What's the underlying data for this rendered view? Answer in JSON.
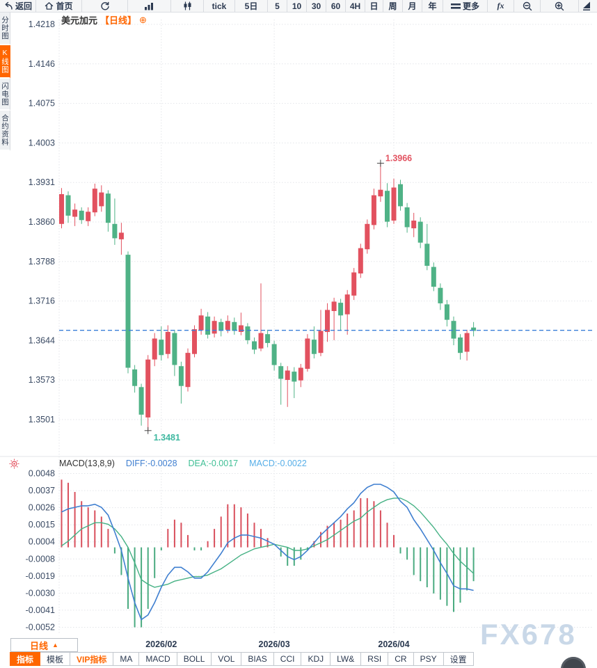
{
  "toolbar": {
    "items": [
      {
        "id": "back",
        "label": "返回",
        "icon": "back-icon"
      },
      {
        "id": "home",
        "label": "首页",
        "icon": "home-icon"
      },
      {
        "id": "refresh",
        "icon": "refresh-icon"
      },
      {
        "id": "bar-chart",
        "icon": "bar-chart-icon"
      },
      {
        "id": "candlestick",
        "icon": "candlestick-icon"
      },
      {
        "id": "tick",
        "label": "tick"
      },
      {
        "id": "5d",
        "label": "5日"
      },
      {
        "id": "m5",
        "label": "5"
      },
      {
        "id": "m10",
        "label": "10"
      },
      {
        "id": "m30",
        "label": "30"
      },
      {
        "id": "m60",
        "label": "60"
      },
      {
        "id": "h4",
        "label": "4H"
      },
      {
        "id": "day",
        "label": "日"
      },
      {
        "id": "week",
        "label": "周"
      },
      {
        "id": "month",
        "label": "月"
      },
      {
        "id": "year",
        "label": "年"
      },
      {
        "id": "more",
        "label": "更多",
        "icon": "menu-icon"
      },
      {
        "id": "fx",
        "label": "fx"
      },
      {
        "id": "zoom-out",
        "icon": "zoom-out-icon"
      },
      {
        "id": "zoom-in",
        "icon": "zoom-in-icon"
      },
      {
        "id": "draw",
        "icon": "draw-icon"
      }
    ]
  },
  "sidebar": {
    "items": [
      {
        "label": "分时图",
        "active": false
      },
      {
        "label": "K线图",
        "active": true
      },
      {
        "label": "闪电图",
        "active": false
      },
      {
        "label": "合约资料",
        "active": false
      }
    ]
  },
  "chart_header": {
    "title": "美元加元",
    "period": "【日线】",
    "add_icon": "⊕"
  },
  "macd_legend": {
    "name": "MACD(13,8,9)",
    "diff": "DIFF:-0.0028",
    "dea": "DEA:-0.0017",
    "macd": "MACD:-0.0022"
  },
  "annotations": {
    "high": "1.3966",
    "low": "1.3481"
  },
  "bottom_bar": {
    "period_label": "日线",
    "period_arrow": "▲",
    "tabs": [
      {
        "label": "指标",
        "state": "active"
      },
      {
        "label": "模板",
        "state": "normal"
      },
      {
        "label": "VIP指标",
        "state": "vip"
      },
      {
        "label": "MA",
        "state": "normal"
      },
      {
        "label": "MACD",
        "state": "normal"
      },
      {
        "label": "BOLL",
        "state": "normal"
      },
      {
        "label": "VOL",
        "state": "normal"
      },
      {
        "label": "BIAS",
        "state": "normal"
      },
      {
        "label": "CCI",
        "state": "normal"
      },
      {
        "label": "KDJ",
        "state": "normal"
      },
      {
        "label": "LW&",
        "state": "normal"
      },
      {
        "label": "RSI",
        "state": "normal"
      },
      {
        "label": "CR",
        "state": "normal"
      },
      {
        "label": "PSY",
        "state": "normal"
      },
      {
        "label": "设置",
        "state": "normal"
      }
    ]
  },
  "watermark": "FX678",
  "colors": {
    "up": "#e2515f",
    "down": "#4fb286",
    "hist_pos": "#d94f5c",
    "hist_neg": "#4aab80",
    "diff_line": "#3f7fd0",
    "dea_line": "#45b184",
    "dashed_line": "#3b7fd8",
    "accent": "#ff6600",
    "axis_text": "#3a4a63",
    "grid": "#e3e5e9",
    "high_text": "#e2515f",
    "low_text": "#3eb8a0"
  },
  "chart_data": {
    "type": "candlestick+macd",
    "symbol": "美元加元",
    "period": "日线",
    "price_axis_ticks": [
      "1.4218",
      "1.4146",
      "1.4075",
      "1.4003",
      "1.3931",
      "1.3860",
      "1.3788",
      "1.3716",
      "1.3644",
      "1.3573",
      "1.3501"
    ],
    "macd_axis_ticks": [
      "0.0048",
      "0.0037",
      "0.0026",
      "0.0015",
      "0.0004",
      "-0.0008",
      "-0.0019",
      "-0.0030",
      "-0.0041",
      "-0.0052"
    ],
    "x_labels": [
      "2026/02",
      "2026/03",
      "2026/04"
    ],
    "x_label_indices": [
      15,
      32,
      50
    ],
    "dashed_line_price": 1.3663,
    "high_marker": {
      "value": 1.3966,
      "index": 48
    },
    "low_marker": {
      "value": 1.3481,
      "index": 13
    },
    "candles": [
      [
        1.3856,
        1.3921,
        1.3848,
        1.391
      ],
      [
        1.3908,
        1.3915,
        1.3858,
        1.3871
      ],
      [
        1.3869,
        1.3893,
        1.3852,
        1.3882
      ],
      [
        1.388,
        1.3886,
        1.3856,
        1.3863
      ],
      [
        1.3861,
        1.3886,
        1.3852,
        1.3878
      ],
      [
        1.3877,
        1.3929,
        1.387,
        1.392
      ],
      [
        1.3888,
        1.3926,
        1.3878,
        1.3913
      ],
      [
        1.3911,
        1.3917,
        1.3842,
        1.3858
      ],
      [
        1.3856,
        1.3902,
        1.3818,
        1.383
      ],
      [
        1.3828,
        1.3858,
        1.38,
        1.384
      ],
      [
        1.38,
        1.3806,
        1.3585,
        1.3595
      ],
      [
        1.3592,
        1.36,
        1.355,
        1.3562
      ],
      [
        1.356,
        1.3566,
        1.349,
        1.351
      ],
      [
        1.3505,
        1.3618,
        1.3481,
        1.361
      ],
      [
        1.361,
        1.3658,
        1.3598,
        1.3648
      ],
      [
        1.3646,
        1.367,
        1.3608,
        1.3618
      ],
      [
        1.362,
        1.3672,
        1.3612,
        1.366
      ],
      [
        1.3658,
        1.3664,
        1.358,
        1.36
      ],
      [
        1.3598,
        1.3606,
        1.353,
        1.3562
      ],
      [
        1.356,
        1.363,
        1.3552,
        1.3622
      ],
      [
        1.362,
        1.3672,
        1.3614,
        1.3665
      ],
      [
        1.3663,
        1.3702,
        1.3655,
        1.369
      ],
      [
        1.3688,
        1.3696,
        1.3648,
        1.3655
      ],
      [
        1.3657,
        1.3688,
        1.365,
        1.368
      ],
      [
        1.3678,
        1.3684,
        1.3652,
        1.3662
      ],
      [
        1.3664,
        1.369,
        1.3658,
        1.368
      ],
      [
        1.3678,
        1.3686,
        1.3655,
        1.3662
      ],
      [
        1.366,
        1.3695,
        1.3654,
        1.3672
      ],
      [
        1.367,
        1.3676,
        1.3638,
        1.3645
      ],
      [
        1.3643,
        1.365,
        1.362,
        1.3628
      ],
      [
        1.363,
        1.3748,
        1.3625,
        1.3658
      ],
      [
        1.3656,
        1.3664,
        1.3632,
        1.364
      ],
      [
        1.3638,
        1.3644,
        1.359,
        1.36
      ],
      [
        1.3598,
        1.3604,
        1.3528,
        1.3575
      ],
      [
        1.3573,
        1.3598,
        1.3524,
        1.359
      ],
      [
        1.3588,
        1.3596,
        1.354,
        1.357
      ],
      [
        1.3572,
        1.3602,
        1.356,
        1.3595
      ],
      [
        1.3593,
        1.3656,
        1.3588,
        1.3648
      ],
      [
        1.3646,
        1.367,
        1.3612,
        1.362
      ],
      [
        1.3622,
        1.37,
        1.3616,
        1.3662
      ],
      [
        1.366,
        1.3712,
        1.3642,
        1.37
      ],
      [
        1.3698,
        1.3722,
        1.3645,
        1.3715
      ],
      [
        1.3713,
        1.372,
        1.3662,
        1.369
      ],
      [
        1.3692,
        1.3736,
        1.3655,
        1.3728
      ],
      [
        1.3726,
        1.3776,
        1.3718,
        1.3768
      ],
      [
        1.3766,
        1.382,
        1.3758,
        1.3812
      ],
      [
        1.381,
        1.3864,
        1.3802,
        1.3856
      ],
      [
        1.3854,
        1.392,
        1.3846,
        1.3908
      ],
      [
        1.3906,
        1.3966,
        1.3896,
        1.3918
      ],
      [
        1.3916,
        1.393,
        1.385,
        1.386
      ],
      [
        1.3862,
        1.3938,
        1.3856,
        1.3922
      ],
      [
        1.3928,
        1.3936,
        1.388,
        1.3888
      ],
      [
        1.3886,
        1.3894,
        1.384,
        1.385
      ],
      [
        1.3848,
        1.3876,
        1.3832,
        1.3862
      ],
      [
        1.386,
        1.3868,
        1.3812,
        1.3822
      ],
      [
        1.382,
        1.3856,
        1.3772,
        1.378
      ],
      [
        1.3778,
        1.3786,
        1.3734,
        1.3742
      ],
      [
        1.374,
        1.3748,
        1.37,
        1.3712
      ],
      [
        1.371,
        1.3718,
        1.367,
        1.3682
      ],
      [
        1.368,
        1.3688,
        1.3636,
        1.3648
      ],
      [
        1.365,
        1.3656,
        1.361,
        1.3622
      ],
      [
        1.3624,
        1.3664,
        1.3608,
        1.3658
      ],
      [
        1.3668,
        1.3678,
        1.3652,
        1.3662
      ]
    ],
    "macd": {
      "params": "13,8,9",
      "hist_rule": "hist = 2*(diff-dea)",
      "diff": [
        0.0023,
        0.0025,
        0.0026,
        0.0027,
        0.0027,
        0.0028,
        0.0026,
        0.0021,
        0.001,
        -0.0002,
        -0.002,
        -0.0036,
        -0.0047,
        -0.0044,
        -0.0036,
        -0.0026,
        -0.0018,
        -0.0013,
        -0.0013,
        -0.0016,
        -0.002,
        -0.002,
        -0.0016,
        -0.001,
        -0.0004,
        0.0003,
        0.0006,
        0.0008,
        0.0008,
        0.0007,
        0.0006,
        0.0004,
        0.0002,
        -0.0002,
        -0.0006,
        -0.0008,
        -0.0006,
        -0.0002,
        0.0003,
        0.0008,
        0.0012,
        0.0016,
        0.002,
        0.0025,
        0.0029,
        0.0035,
        0.0039,
        0.0041,
        0.0041,
        0.0039,
        0.0036,
        0.003,
        0.0026,
        0.0018,
        0.0012,
        0.0005,
        -0.0002,
        -0.001,
        -0.0017,
        -0.0025,
        -0.0027,
        -0.0027,
        -0.0028
      ],
      "dea": [
        0.0001,
        0.0004,
        0.0008,
        0.0012,
        0.0014,
        0.0016,
        0.0016,
        0.0015,
        0.0012,
        0.0007,
        0.0,
        -0.001,
        -0.0021,
        -0.0024,
        -0.0026,
        -0.0025,
        -0.0024,
        -0.0022,
        -0.0021,
        -0.002,
        -0.0019,
        -0.0019,
        -0.0018,
        -0.0016,
        -0.0014,
        -0.0011,
        -0.0008,
        -0.0005,
        -0.0003,
        -0.0001,
        0.0,
        0.0001,
        0.0002,
        0.0001,
        0.0,
        -0.0002,
        -0.0002,
        -0.0001,
        0.0001,
        0.0003,
        0.0005,
        0.0008,
        0.0011,
        0.0014,
        0.0017,
        0.0019,
        0.0023,
        0.0026,
        0.0029,
        0.0031,
        0.0032,
        0.0032,
        0.003,
        0.0027,
        0.0023,
        0.0018,
        0.0013,
        0.0007,
        0.0002,
        -0.0004,
        -0.0009,
        -0.0013,
        -0.0017
      ]
    }
  }
}
